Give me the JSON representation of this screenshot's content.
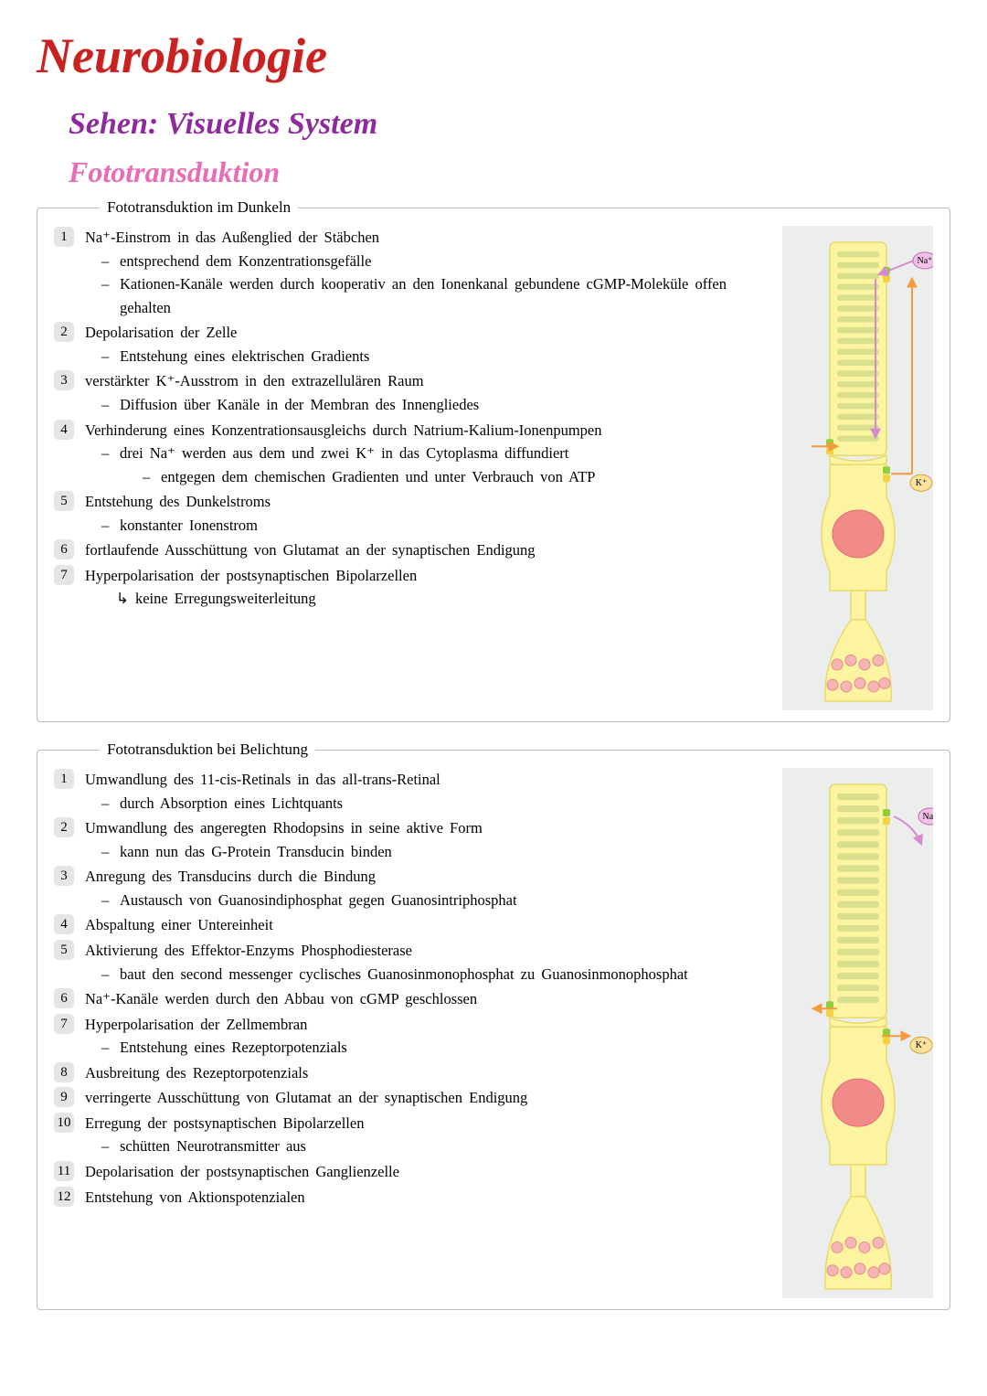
{
  "title": "Neurobiologie",
  "subtitle1": "Sehen: Visuelles System",
  "subtitle2": "Fototransduktion",
  "box1": {
    "legend": "Fototransduktion im Dunkeln",
    "steps": [
      {
        "t": "Na⁺-Einstrom in das Außenglied der Stäbchen",
        "sub": [
          "entsprechend dem Konzentrationsgefälle",
          "Kationen-Kanäle werden durch kooperativ an den Ionenkanal gebundene cGMP-Moleküle offen gehalten"
        ]
      },
      {
        "t": "Depolarisation der Zelle",
        "sub": [
          "Entstehung eines elektrischen Gradients"
        ]
      },
      {
        "t": "verstärkter K⁺-Ausstrom in den extrazellulären Raum",
        "sub": [
          "Diffusion über Kanäle in der Membran des Innengliedes"
        ]
      },
      {
        "t": "Verhinderung eines Konzentrationsausgleichs durch Natrium-Kalium-Ionenpumpen",
        "sub": [
          {
            "t": "drei Na⁺ werden aus dem und zwei K⁺ in das Cytoplasma diffundiert",
            "sub": [
              "entgegen dem chemischen Gradienten und unter Verbrauch von ATP"
            ]
          }
        ]
      },
      {
        "t": "Entstehung des Dunkelstroms",
        "sub": [
          "konstanter Ionenstrom"
        ]
      },
      {
        "t": "fortlaufende Ausschüttung von Glutamat an der synaptischen Endigung"
      },
      {
        "t": "Hyperpolarisation der postsynaptischen Bipolarzellen",
        "arrow": "keine Erregungsweiterleitung"
      }
    ]
  },
  "box2": {
    "legend": "Fototransduktion bei Belichtung",
    "steps": [
      {
        "t": "Umwandlung des 11-cis-Retinals in das all-trans-Retinal",
        "sub": [
          "durch Absorption eines Lichtquants"
        ]
      },
      {
        "t": "Umwandlung des angeregten Rhodopsins in seine aktive Form",
        "sub": [
          "kann nun das G-Protein Transducin binden"
        ]
      },
      {
        "t": "Anregung des Transducins durch die Bindung",
        "sub": [
          "Austausch von Guanosindiphosphat gegen Guanosintriphosphat"
        ]
      },
      {
        "t": "Abspaltung einer Untereinheit"
      },
      {
        "t": "Aktivierung des Effektor-Enzyms Phosphodiesterase",
        "sub": [
          "baut den second messenger cyclisches Guanosinmonophosphat zu Guanosinmonophosphat"
        ]
      },
      {
        "t": "Na⁺-Kanäle werden durch den Abbau von cGMP geschlossen"
      },
      {
        "t": "Hyperpolarisation der Zellmembran",
        "sub": [
          "Entstehung eines Rezeptorpotenzials"
        ]
      },
      {
        "t": "Ausbreitung des Rezeptorpotenzials"
      },
      {
        "t": "verringerte Ausschüttung von Glutamat an der synaptischen Endigung"
      },
      {
        "t": "Erregung der postsynaptischen Bipolarzellen",
        "sub": [
          "schütten Neurotransmitter aus"
        ]
      },
      {
        "t": "Depolarisation der postsynaptischen Ganglienzelle"
      },
      {
        "t": "Entstehung von Aktionspotenzialen"
      }
    ]
  },
  "diagram": {
    "colors": {
      "bg": "#eceded",
      "cell_fill": "#fdf4a1",
      "cell_stroke": "#e8d96a",
      "disc": "#d8e08e",
      "nucleus": "#f28a8a",
      "nucleus_stroke": "#e36f6f",
      "vesicle": "#f7b6b6",
      "vesicle_stroke": "#e88a8a",
      "channel_green": "#8fcf3a",
      "channel_yellow": "#f2d23e",
      "arrow_na": "#d58bd0",
      "arrow_k": "#f59a3e",
      "na_badge_fill": "#f1c1e6",
      "na_badge_stroke": "#b96bb3",
      "k_badge_fill": "#ffe3a1",
      "k_badge_stroke": "#d9a338"
    },
    "labels": {
      "na": "Na⁺",
      "k": "K⁺"
    }
  }
}
